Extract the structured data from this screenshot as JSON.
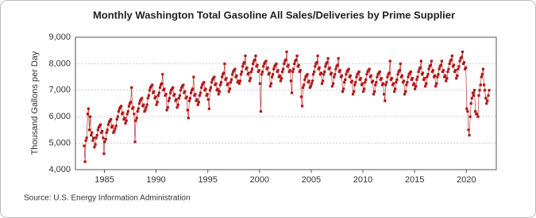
{
  "chart_data": {
    "type": "line",
    "title": "Monthly Washington Total Gasoline All Sales/Deliveries by Prime Supplier",
    "y_label": "Thousand Gallons per Day",
    "source": "Source: U.S. Energy Information Administration",
    "xlim": [
      1982.2,
      2022.9
    ],
    "xticks": [
      1985,
      1990,
      1995,
      2000,
      2005,
      2010,
      2015,
      2020
    ],
    "ylim": [
      4000,
      9000
    ],
    "yticks": [
      {
        "value": 4000,
        "label": "4,000"
      },
      {
        "value": 5000,
        "label": "5,000"
      },
      {
        "value": 6000,
        "label": "6,000"
      },
      {
        "value": 7000,
        "label": "7,000"
      },
      {
        "value": 8000,
        "label": "8,000"
      },
      {
        "value": 9000,
        "label": "9,000"
      }
    ],
    "grid": true,
    "x": [
      1983.04,
      1983.13,
      1983.21,
      1983.29,
      1983.38,
      1983.46,
      1983.54,
      1983.63,
      1983.71,
      1983.79,
      1983.88,
      1983.96,
      1984.04,
      1984.13,
      1984.21,
      1984.29,
      1984.38,
      1984.46,
      1984.54,
      1984.63,
      1984.71,
      1984.79,
      1984.88,
      1984.96,
      1985.04,
      1985.13,
      1985.21,
      1985.29,
      1985.38,
      1985.46,
      1985.54,
      1985.63,
      1985.71,
      1985.79,
      1985.88,
      1985.96,
      1986.04,
      1986.13,
      1986.21,
      1986.29,
      1986.38,
      1986.46,
      1986.54,
      1986.63,
      1986.71,
      1986.79,
      1986.88,
      1986.96,
      1987.04,
      1987.13,
      1987.21,
      1987.29,
      1987.38,
      1987.46,
      1987.54,
      1987.63,
      1987.71,
      1987.79,
      1987.88,
      1987.96,
      1988.04,
      1988.13,
      1988.21,
      1988.29,
      1988.38,
      1988.46,
      1988.54,
      1988.63,
      1988.71,
      1988.79,
      1988.88,
      1988.96,
      1989.04,
      1989.13,
      1989.21,
      1989.29,
      1989.38,
      1989.46,
      1989.54,
      1989.63,
      1989.71,
      1989.79,
      1989.88,
      1989.96,
      1990.04,
      1990.13,
      1990.21,
      1990.29,
      1990.38,
      1990.46,
      1990.54,
      1990.63,
      1990.71,
      1990.79,
      1990.88,
      1990.96,
      1991.04,
      1991.13,
      1991.21,
      1991.29,
      1991.38,
      1991.46,
      1991.54,
      1991.63,
      1991.71,
      1991.79,
      1991.88,
      1991.96,
      1992.04,
      1992.13,
      1992.21,
      1992.29,
      1992.38,
      1992.46,
      1992.54,
      1992.63,
      1992.71,
      1992.79,
      1992.88,
      1992.96,
      1993.04,
      1993.13,
      1993.21,
      1993.29,
      1993.38,
      1993.46,
      1993.54,
      1993.63,
      1993.71,
      1993.79,
      1993.88,
      1993.96,
      1994.04,
      1994.13,
      1994.21,
      1994.29,
      1994.38,
      1994.46,
      1994.54,
      1994.63,
      1994.71,
      1994.79,
      1994.88,
      1994.96,
      1995.04,
      1995.13,
      1995.21,
      1995.29,
      1995.38,
      1995.46,
      1995.54,
      1995.63,
      1995.71,
      1995.79,
      1995.88,
      1995.96,
      1996.04,
      1996.13,
      1996.21,
      1996.29,
      1996.38,
      1996.46,
      1996.54,
      1996.63,
      1996.71,
      1996.79,
      1996.88,
      1996.96,
      1997.04,
      1997.13,
      1997.21,
      1997.29,
      1997.38,
      1997.46,
      1997.54,
      1997.63,
      1997.71,
      1997.79,
      1997.88,
      1997.96,
      1998.04,
      1998.13,
      1998.21,
      1998.29,
      1998.38,
      1998.46,
      1998.54,
      1998.63,
      1998.71,
      1998.79,
      1998.88,
      1998.96,
      1999.04,
      1999.13,
      1999.21,
      1999.29,
      1999.38,
      1999.46,
      1999.54,
      1999.63,
      1999.71,
      1999.79,
      1999.88,
      1999.96,
      2000.04,
      2000.13,
      2000.21,
      2000.29,
      2000.38,
      2000.46,
      2000.54,
      2000.63,
      2000.71,
      2000.79,
      2000.88,
      2000.96,
      2001.04,
      2001.13,
      2001.21,
      2001.29,
      2001.38,
      2001.46,
      2001.54,
      2001.63,
      2001.71,
      2001.79,
      2001.88,
      2001.96,
      2002.04,
      2002.13,
      2002.21,
      2002.29,
      2002.38,
      2002.46,
      2002.54,
      2002.63,
      2002.71,
      2002.79,
      2002.88,
      2002.96,
      2003.04,
      2003.13,
      2003.21,
      2003.29,
      2003.38,
      2003.46,
      2003.54,
      2003.63,
      2003.71,
      2003.79,
      2003.88,
      2003.96,
      2004.04,
      2004.13,
      2004.21,
      2004.29,
      2004.38,
      2004.46,
      2004.54,
      2004.63,
      2004.71,
      2004.79,
      2004.88,
      2004.96,
      2005.04,
      2005.13,
      2005.21,
      2005.29,
      2005.38,
      2005.46,
      2005.54,
      2005.63,
      2005.71,
      2005.79,
      2005.88,
      2005.96,
      2006.04,
      2006.13,
      2006.21,
      2006.29,
      2006.38,
      2006.46,
      2006.54,
      2006.63,
      2006.71,
      2006.79,
      2006.88,
      2006.96,
      2007.04,
      2007.13,
      2007.21,
      2007.29,
      2007.38,
      2007.46,
      2007.54,
      2007.63,
      2007.71,
      2007.79,
      2007.88,
      2007.96,
      2008.04,
      2008.13,
      2008.21,
      2008.29,
      2008.38,
      2008.46,
      2008.54,
      2008.63,
      2008.71,
      2008.79,
      2008.88,
      2008.96,
      2009.04,
      2009.13,
      2009.21,
      2009.29,
      2009.38,
      2009.46,
      2009.54,
      2009.63,
      2009.71,
      2009.79,
      2009.88,
      2009.96,
      2010.04,
      2010.13,
      2010.21,
      2010.29,
      2010.38,
      2010.46,
      2010.54,
      2010.63,
      2010.71,
      2010.79,
      2010.88,
      2010.96,
      2011.04,
      2011.13,
      2011.21,
      2011.29,
      2011.38,
      2011.46,
      2011.54,
      2011.63,
      2011.71,
      2011.79,
      2011.88,
      2011.96,
      2012.04,
      2012.13,
      2012.21,
      2012.29,
      2012.38,
      2012.46,
      2012.54,
      2012.63,
      2012.71,
      2012.79,
      2012.88,
      2012.96,
      2013.04,
      2013.13,
      2013.21,
      2013.29,
      2013.38,
      2013.46,
      2013.54,
      2013.63,
      2013.71,
      2013.79,
      2013.88,
      2013.96,
      2014.04,
      2014.13,
      2014.21,
      2014.29,
      2014.38,
      2014.46,
      2014.54,
      2014.63,
      2014.71,
      2014.79,
      2014.88,
      2014.96,
      2015.04,
      2015.13,
      2015.21,
      2015.29,
      2015.38,
      2015.46,
      2015.54,
      2015.63,
      2015.71,
      2015.79,
      2015.88,
      2015.96,
      2016.04,
      2016.13,
      2016.21,
      2016.29,
      2016.38,
      2016.46,
      2016.54,
      2016.63,
      2016.71,
      2016.79,
      2016.88,
      2016.96,
      2017.04,
      2017.13,
      2017.21,
      2017.29,
      2017.38,
      2017.46,
      2017.54,
      2017.63,
      2017.71,
      2017.79,
      2017.88,
      2017.96,
      2018.04,
      2018.13,
      2018.21,
      2018.29,
      2018.38,
      2018.46,
      2018.54,
      2018.63,
      2018.71,
      2018.79,
      2018.88,
      2018.96,
      2019.04,
      2019.13,
      2019.21,
      2019.29,
      2019.38,
      2019.46,
      2019.54,
      2019.63,
      2019.71,
      2019.79,
      2019.88,
      2019.96,
      2020.04,
      2020.13,
      2020.21,
      2020.29,
      2020.38,
      2020.46,
      2020.54,
      2020.63,
      2020.71,
      2020.79,
      2020.88,
      2020.96,
      2021.04,
      2021.13,
      2021.21,
      2021.29,
      2021.38,
      2021.46,
      2021.54,
      2021.63,
      2021.71,
      2021.79,
      2021.88,
      2021.96,
      2022.04,
      2022.13,
      2022.21
    ],
    "series": [
      {
        "color": "#b01818",
        "values": [
          4900,
          4300,
          5100,
          5200,
          6100,
          6300,
          5500,
          6000,
          5300,
          5400,
          5100,
          5200,
          4850,
          4950,
          5200,
          5300,
          5500,
          5600,
          5650,
          5700,
          5400,
          5450,
          5200,
          4600,
          5050,
          5150,
          5400,
          5500,
          5700,
          5800,
          5850,
          5900,
          5600,
          5650,
          5400,
          5450,
          5550,
          5650,
          5900,
          6000,
          6200,
          6300,
          6350,
          6400,
          6100,
          6150,
          5900,
          5950,
          5750,
          5850,
          6100,
          6200,
          6400,
          6500,
          6550,
          7100,
          6300,
          6350,
          6100,
          5050,
          5850,
          5950,
          6200,
          6300,
          6500,
          6600,
          6650,
          6700,
          6400,
          6450,
          6200,
          6250,
          6350,
          6450,
          6700,
          6800,
          7000,
          7100,
          7150,
          7200,
          6900,
          6950,
          6700,
          6750,
          6450,
          6550,
          6800,
          6900,
          7100,
          7200,
          7250,
          7600,
          7000,
          7050,
          6800,
          6850,
          6250,
          6350,
          6600,
          6700,
          6900,
          7000,
          7050,
          7100,
          6800,
          6850,
          6600,
          6650,
          6350,
          6450,
          6700,
          6800,
          7000,
          7100,
          7150,
          7200,
          6900,
          6950,
          6700,
          6750,
          6250,
          5950,
          6600,
          6700,
          6900,
          7000,
          7050,
          7500,
          6800,
          6850,
          6600,
          6650,
          6450,
          6550,
          6800,
          6900,
          7100,
          7200,
          7250,
          7300,
          7000,
          7050,
          6800,
          6850,
          6650,
          6300,
          7000,
          7100,
          7300,
          7400,
          7450,
          7500,
          7200,
          7250,
          7000,
          7050,
          6850,
          6950,
          7200,
          7300,
          7500,
          7600,
          7650,
          8000,
          7400,
          7450,
          7200,
          7250,
          6950,
          7050,
          7300,
          7400,
          7600,
          7700,
          7750,
          7800,
          7500,
          7550,
          7300,
          7350,
          7250,
          7350,
          7600,
          7700,
          7900,
          8000,
          8050,
          8300,
          7800,
          7850,
          7600,
          7650,
          7350,
          7450,
          7700,
          7800,
          8000,
          8100,
          8150,
          8300,
          7900,
          7950,
          7700,
          7750,
          7250,
          6200,
          7600,
          7700,
          7900,
          8000,
          8050,
          8100,
          7800,
          7850,
          7600,
          7650,
          7150,
          7250,
          7500,
          7600,
          7800,
          7900,
          7950,
          8000,
          7700,
          7750,
          7500,
          7550,
          7350,
          7450,
          7700,
          7800,
          8000,
          8100,
          8150,
          8450,
          7900,
          7950,
          7700,
          7750,
          7350,
          6900,
          7700,
          7800,
          8000,
          8100,
          8150,
          8300,
          7900,
          7950,
          7700,
          7750,
          6750,
          6400,
          7100,
          7200,
          7400,
          7500,
          7550,
          7600,
          7300,
          7350,
          7100,
          7150,
          7250,
          7350,
          7600,
          7700,
          7900,
          8000,
          8050,
          8300,
          7800,
          7850,
          7600,
          7650,
          7250,
          7350,
          7600,
          7700,
          7900,
          8000,
          8050,
          8200,
          7800,
          7850,
          7600,
          7650,
          7150,
          7250,
          7500,
          7600,
          7800,
          7900,
          7950,
          8200,
          7700,
          7750,
          7500,
          7550,
          6950,
          7050,
          7300,
          7400,
          7600,
          7700,
          7750,
          7800,
          7500,
          7550,
          7300,
          7350,
          6850,
          6950,
          7200,
          7300,
          7500,
          7600,
          7650,
          7700,
          7400,
          7450,
          7200,
          7250,
          6950,
          7050,
          7300,
          7400,
          7600,
          7700,
          7750,
          7800,
          7500,
          7550,
          7300,
          7350,
          6850,
          6950,
          7200,
          7300,
          7500,
          7600,
          7650,
          7700,
          7400,
          7450,
          7200,
          7250,
          6850,
          6600,
          7200,
          7300,
          7500,
          7600,
          7650,
          8100,
          7400,
          7450,
          7200,
          7250,
          6950,
          7050,
          7300,
          7400,
          7600,
          7700,
          7750,
          8000,
          7500,
          7550,
          7300,
          7350,
          6850,
          6950,
          7200,
          7300,
          7500,
          7600,
          7650,
          7700,
          7400,
          7450,
          7200,
          7250,
          7050,
          7150,
          7400,
          7500,
          7700,
          7800,
          7850,
          8100,
          7600,
          7650,
          7400,
          7450,
          7150,
          7250,
          7500,
          7600,
          7800,
          7900,
          7950,
          8100,
          7700,
          7750,
          7500,
          7550,
          7150,
          7250,
          7500,
          7600,
          7800,
          7900,
          7950,
          8100,
          7700,
          7750,
          7500,
          7550,
          7350,
          7450,
          7700,
          7800,
          8000,
          8100,
          8150,
          8300,
          7900,
          7950,
          7700,
          7750,
          7450,
          7550,
          7800,
          7900,
          8100,
          8200,
          8250,
          8450,
          8000,
          8050,
          7800,
          7850,
          6300,
          6200,
          5500,
          5300,
          6000,
          6500,
          6700,
          6900,
          6800,
          7000,
          6200,
          6100,
          6100,
          6000,
          6800,
          7000,
          7200,
          7500,
          7600,
          7800,
          7200,
          7000,
          6700,
          6500,
          6600,
          6800,
          7000
        ]
      }
    ]
  }
}
